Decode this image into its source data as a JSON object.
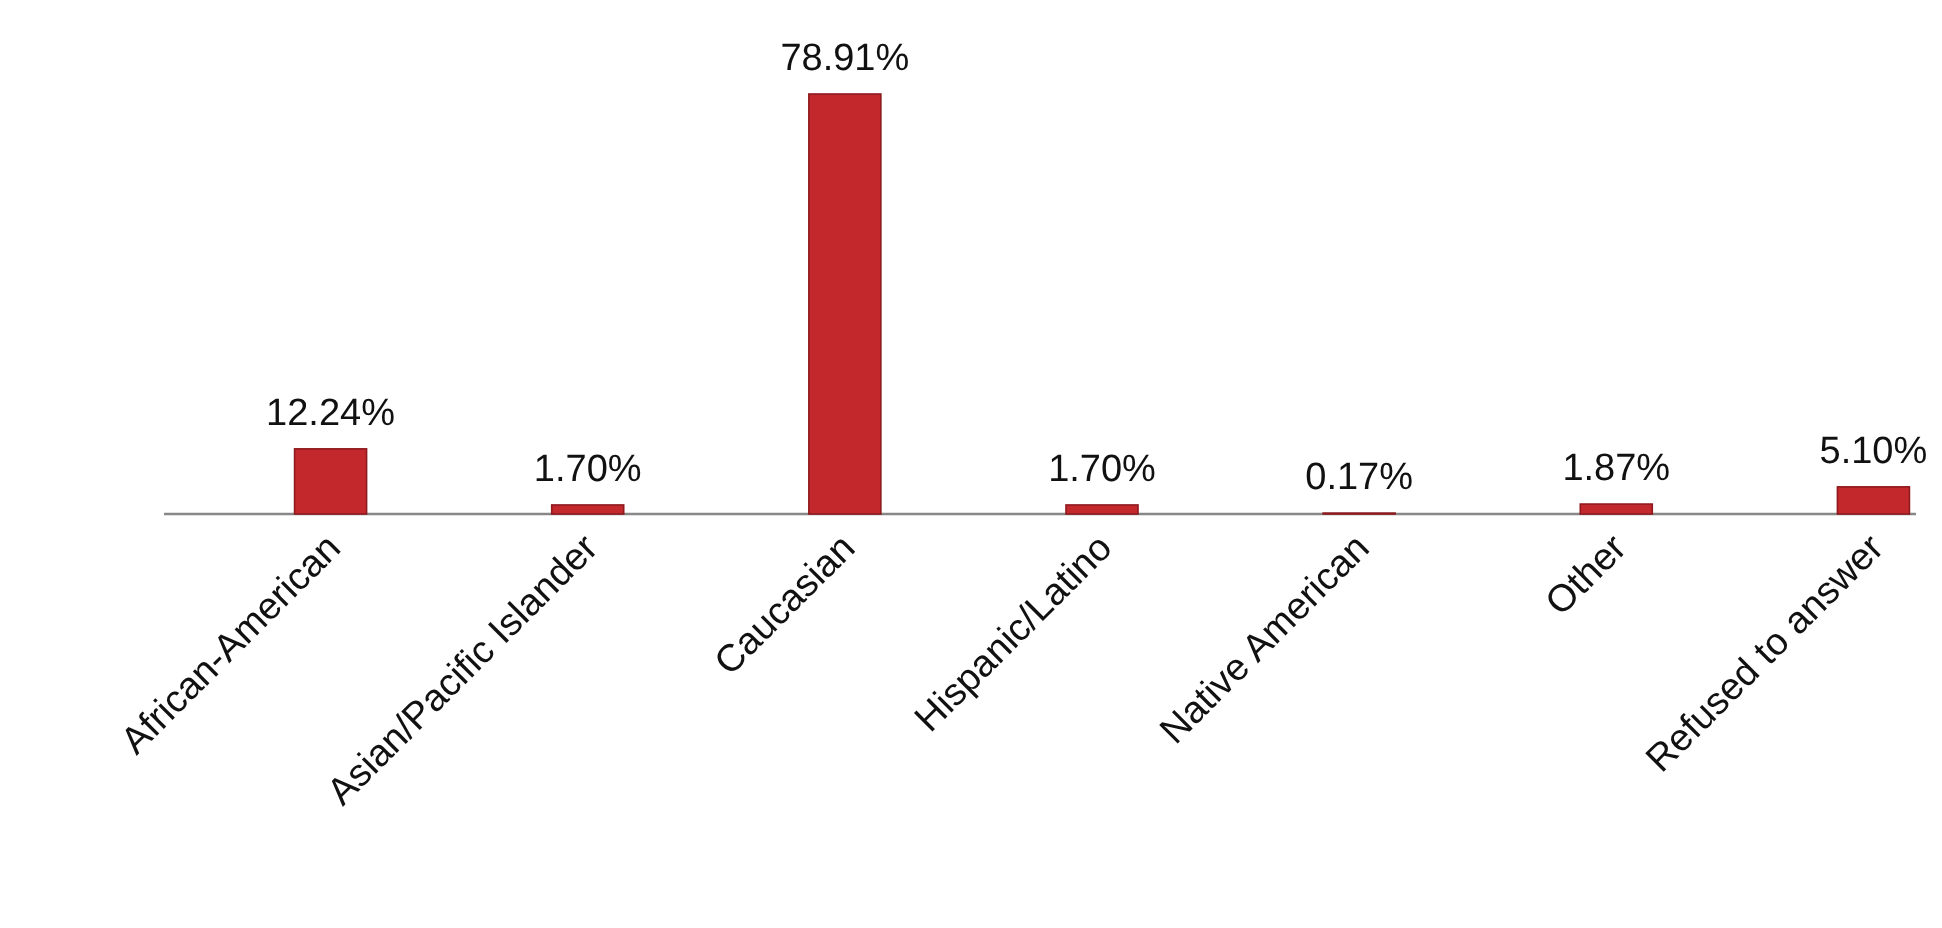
{
  "chart_data": {
    "type": "bar",
    "categories": [
      "African-American",
      "Asian/Pacific Islander",
      "Caucasian",
      "Hispanic/Latino",
      "Native American",
      "Other",
      "Refused to answer"
    ],
    "values": [
      12.24,
      1.7,
      78.91,
      1.7,
      0.17,
      1.87,
      5.1
    ],
    "value_labels": [
      "12.24%",
      "1.70%",
      "78.91%",
      "1.70%",
      "0.17%",
      "1.87%",
      "5.10%"
    ],
    "color": "#c3282d"
  }
}
